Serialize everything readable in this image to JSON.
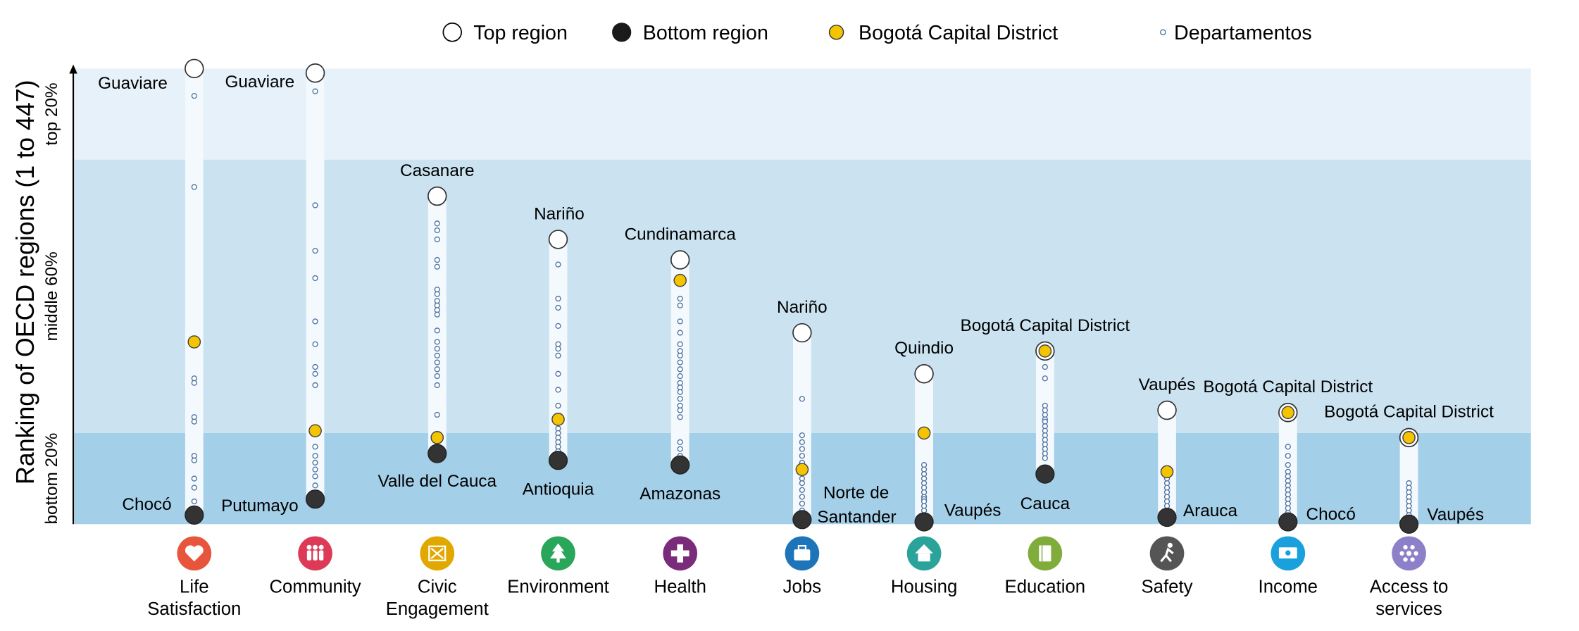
{
  "chart_data": {
    "type": "scatter",
    "y_axis_label": "Ranking of OECD regions (1 to 447)",
    "bands": [
      {
        "label": "top 20%",
        "from_pct": 80,
        "to_pct": 100,
        "color": "#e6f1f9"
      },
      {
        "label": "middle 60%",
        "from_pct": 20,
        "to_pct": 80,
        "color": "#cbe3f1"
      },
      {
        "label": "bottom 20%",
        "from_pct": 0,
        "to_pct": 20,
        "color": "#a4cfe8"
      }
    ],
    "legend": [
      {
        "key": "top",
        "label": "Top region"
      },
      {
        "key": "bottom",
        "label": "Bottom region"
      },
      {
        "key": "bogota",
        "label": "Bogotá Capital District"
      },
      {
        "key": "dept",
        "label": "Departamentos"
      }
    ],
    "colors": {
      "bogota": "#f5c400",
      "dept_stroke": "#5478a6",
      "bottom": "#333333",
      "top": "#ffffff"
    },
    "y_range": [
      0,
      100
    ],
    "categories": [
      {
        "label": "Life Satisfaction",
        "label_lines": [
          "Life",
          "Satisfaction"
        ],
        "icon": "heart-icon",
        "icon_color": "#e8553d",
        "top": 100,
        "top_label": "Guaviare",
        "bottom": 2,
        "bottom_label": "Chocó",
        "bogota": 40,
        "depts": [
          94,
          74,
          32,
          31,
          23.5,
          22.5,
          15,
          14,
          10,
          8,
          5
        ]
      },
      {
        "label": "Community",
        "label_lines": [
          "Community"
        ],
        "icon": "community-icon",
        "icon_color": "#dc3a56",
        "top": 99,
        "top_label": "Guaviare",
        "bottom": 5.5,
        "bottom_label": "Putumayo",
        "bogota": 20.5,
        "depts": [
          95,
          70,
          60,
          54,
          44.5,
          39.5,
          34.5,
          33,
          30.5,
          17,
          15,
          13.5,
          12,
          10.5,
          8.5
        ]
      },
      {
        "label": "Civic Engagement",
        "label_lines": [
          "Civic",
          "Engagement"
        ],
        "icon": "civic-icon",
        "icon_color": "#e0a800",
        "top": 72,
        "top_label": "Casanare",
        "bottom": 15.5,
        "bottom_label": "Valle del Cauca",
        "bogota": 19,
        "depts": [
          66,
          64.5,
          62.5,
          58,
          56.5,
          51.5,
          50.5,
          49,
          48,
          47,
          46,
          42.5,
          40,
          38.5,
          37,
          35.5,
          34,
          32.5,
          30.5,
          24
        ]
      },
      {
        "label": "Environment",
        "label_lines": [
          "Environment"
        ],
        "icon": "tree-icon",
        "icon_color": "#2aa65a",
        "top": 62.5,
        "top_label": "Nariño",
        "bottom": 14,
        "bottom_label": "Antioquia",
        "bogota": 23,
        "depts": [
          57,
          49.5,
          47.5,
          43.5,
          39.5,
          38.5,
          37,
          33,
          29.5,
          26,
          21,
          20,
          19,
          18,
          17,
          16
        ]
      },
      {
        "label": "Health",
        "label_lines": [
          "Health"
        ],
        "icon": "health-icon",
        "icon_color": "#7a2c7a",
        "top": 58,
        "top_label": "Cundinamarca",
        "bottom": 13,
        "bottom_label": "Amazonas",
        "bogota": 53.5,
        "depts": [
          49.5,
          48,
          44.5,
          42,
          39.5,
          38,
          37,
          35.5,
          34,
          32.5,
          31,
          30,
          29,
          27.5,
          26,
          25,
          23.5,
          18,
          16.5,
          15
        ]
      },
      {
        "label": "Jobs",
        "label_lines": [
          "Jobs"
        ],
        "icon": "briefcase-icon",
        "icon_color": "#1d74b8",
        "top": 42,
        "top_label": "Nariño",
        "bottom": 1,
        "bottom_label": "Norte de Santander",
        "bogota": 12,
        "depts": [
          27.5,
          19.5,
          18,
          16.5,
          15,
          13.5,
          10,
          9,
          7.5,
          6,
          4.5,
          3
        ]
      },
      {
        "label": "Housing",
        "label_lines": [
          "Housing"
        ],
        "icon": "house-icon",
        "icon_color": "#2aa39a",
        "top": 33,
        "top_label": "Quindio",
        "bottom": 0.5,
        "bottom_label": "Vaupés",
        "bogota": 20,
        "depts": [
          13,
          12,
          11,
          10,
          9,
          8,
          7,
          6,
          5.5,
          5,
          4,
          3,
          2
        ]
      },
      {
        "label": "Education",
        "label_lines": [
          "Education"
        ],
        "icon": "book-icon",
        "icon_color": "#7fac3a",
        "top": 38,
        "top_label": "Bogotá Capital District",
        "bottom": 11,
        "bottom_label": "Cauca",
        "bogota": 38,
        "depts": [
          34.5,
          32,
          26,
          25,
          24,
          23,
          22.5,
          21.5,
          20.5,
          19.5,
          18.5,
          17.5,
          16.5,
          15.5,
          14.5
        ]
      },
      {
        "label": "Safety",
        "label_lines": [
          "Safety"
        ],
        "icon": "running-icon",
        "icon_color": "#555555",
        "top": 25,
        "top_label": "Vaupés",
        "bottom": 1.5,
        "bottom_label": "Arauca",
        "bogota": 11.5,
        "depts": [
          10,
          9,
          8,
          7,
          6,
          5,
          4,
          3
        ]
      },
      {
        "label": "Income",
        "label_lines": [
          "Income"
        ],
        "icon": "money-icon",
        "icon_color": "#1aa0dc",
        "top": 24.5,
        "top_label": "Bogotá Capital District",
        "bottom": 0.5,
        "bottom_label": "Chocó",
        "bogota": 24.5,
        "depts": [
          17,
          15,
          13,
          11.5,
          10.5,
          9.5,
          8.5,
          7.5,
          6.5,
          5.5,
          4.5,
          3.5,
          2.5
        ]
      },
      {
        "label": "Access to services",
        "label_lines": [
          "Access to",
          "services"
        ],
        "icon": "network-icon",
        "icon_color": "#8e80c8",
        "top": 19,
        "top_label": "Bogotá Capital District",
        "bottom": 0,
        "bottom_label": "Vaupés",
        "bogota": 19,
        "depts": [
          9,
          8,
          7,
          6,
          5,
          4,
          3,
          2
        ]
      }
    ]
  }
}
